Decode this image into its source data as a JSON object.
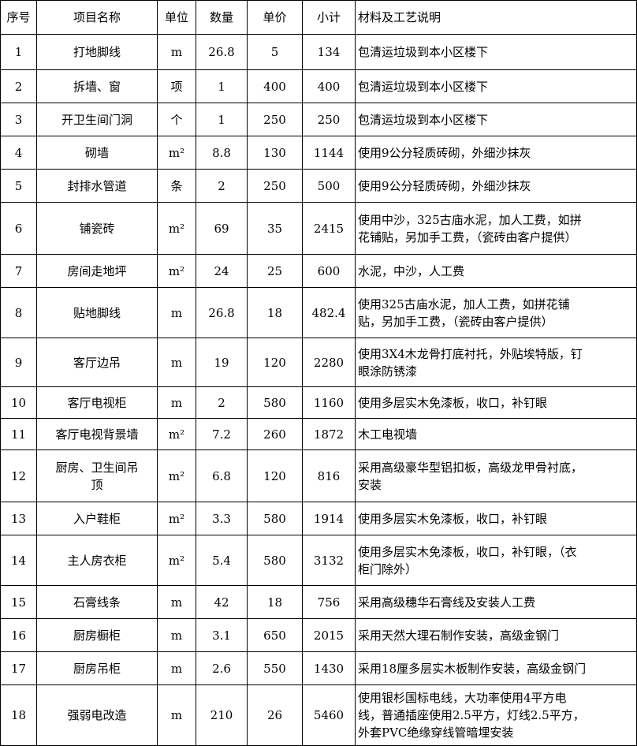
{
  "headers": [
    "序号",
    "项目名称",
    "单位",
    "数量",
    "单价",
    "小计",
    "材料及工艺说明"
  ],
  "rows": [
    {
      "no": "1",
      "name": "打地脚线",
      "unit": "m",
      "qty": "26.8",
      "price": "5",
      "subtotal": "134",
      "desc": "包清运垃圾到本小区楼下"
    },
    {
      "no": "2",
      "name": "拆墙、窗",
      "unit": "项",
      "qty": "1",
      "price": "400",
      "subtotal": "400",
      "desc": "包清运垃圾到本小区楼下"
    },
    {
      "no": "3",
      "name": "开卫生间门洞",
      "unit": "个",
      "qty": "1",
      "price": "250",
      "subtotal": "250",
      "desc": "包清运垃圾到本小区楼下"
    },
    {
      "no": "4",
      "name": "砌墙",
      "unit": "m²",
      "qty": "8.8",
      "price": "130",
      "subtotal": "1144",
      "desc": "使用9公分轻质砖砌，外细沙抹灰"
    },
    {
      "no": "5",
      "name": "封排水管道",
      "unit": "条",
      "qty": "2",
      "price": "250",
      "subtotal": "500",
      "desc": "使用9公分轻质砖砌，外细沙抹灰"
    },
    {
      "no": "6",
      "name": "铺瓷砖",
      "unit": "m²",
      "qty": "69",
      "price": "35",
      "subtotal": "2415",
      "desc": "使用中沙，325古庙水泥，加人工费，如拼\n花铺贴，另加手工费，（瓷砖由客户提供）"
    },
    {
      "no": "7",
      "name": "房间走地坪",
      "unit": "m²",
      "qty": "24",
      "price": "25",
      "subtotal": "600",
      "desc": "水泥，中沙，人工费"
    },
    {
      "no": "8",
      "name": "贴地脚线",
      "unit": "m",
      "qty": "26.8",
      "price": "18",
      "subtotal": "482.4",
      "desc": "使用325古庙水泥，加人工费，如拼花铺\n贴，另加手工费，（瓷砖由客户提供）"
    },
    {
      "no": "9",
      "name": "客厅边吊",
      "unit": "m",
      "qty": "19",
      "price": "120",
      "subtotal": "2280",
      "desc": "使用3X4木龙骨打底衬托，外贴埃特版，钉\n眼涂防锈漆"
    },
    {
      "no": "10",
      "name": "客厅电视柜",
      "unit": "m",
      "qty": "2",
      "price": "580",
      "subtotal": "1160",
      "desc": "使用多层实木免漆板，收口，补钉眼"
    },
    {
      "no": "11",
      "name": "客厅电视背景墙",
      "unit": "m²",
      "qty": "7.2",
      "price": "260",
      "subtotal": "1872",
      "desc": "木工电视墙"
    },
    {
      "no": "12",
      "name": "厨房、卫生间吊\n顶",
      "unit": "m²",
      "qty": "6.8",
      "price": "120",
      "subtotal": "816",
      "desc": "采用高级豪华型铝扣板，高级龙甲骨衬底，\n安装"
    },
    {
      "no": "13",
      "name": "入户鞋柜",
      "unit": "m²",
      "qty": "3.3",
      "price": "580",
      "subtotal": "1914",
      "desc": "使用多层实木免漆板，收口，补钉眼"
    },
    {
      "no": "14",
      "name": "主人房衣柜",
      "unit": "m²",
      "qty": "5.4",
      "price": "580",
      "subtotal": "3132",
      "desc": "使用多层实木免漆板，收口，补钉眼，（衣\n柜门除外）"
    },
    {
      "no": "15",
      "name": "石膏线条",
      "unit": "m",
      "qty": "42",
      "price": "18",
      "subtotal": "756",
      "desc": "采用高级穗华石膏线及安装人工费"
    },
    {
      "no": "16",
      "name": "厨房橱柜",
      "unit": "m",
      "qty": "3.1",
      "price": "650",
      "subtotal": "2015",
      "desc": "采用天然大理石制作安装，高级金钢门"
    },
    {
      "no": "17",
      "name": "厨房吊柜",
      "unit": "m",
      "qty": "2.6",
      "price": "550",
      "subtotal": "1430",
      "desc": "采用18厘多层实木板制作安装，高级金钢门"
    },
    {
      "no": "18",
      "name": "强弱电改造",
      "unit": "m",
      "qty": "210",
      "price": "26",
      "subtotal": "5460",
      "desc": "使用银杉国标电线，大功率使用4平方电\n线，普通插座使用2.5平方，灯线2.5平方，\n外套PVC绝缘穿线管暗埋安装"
    }
  ]
}
